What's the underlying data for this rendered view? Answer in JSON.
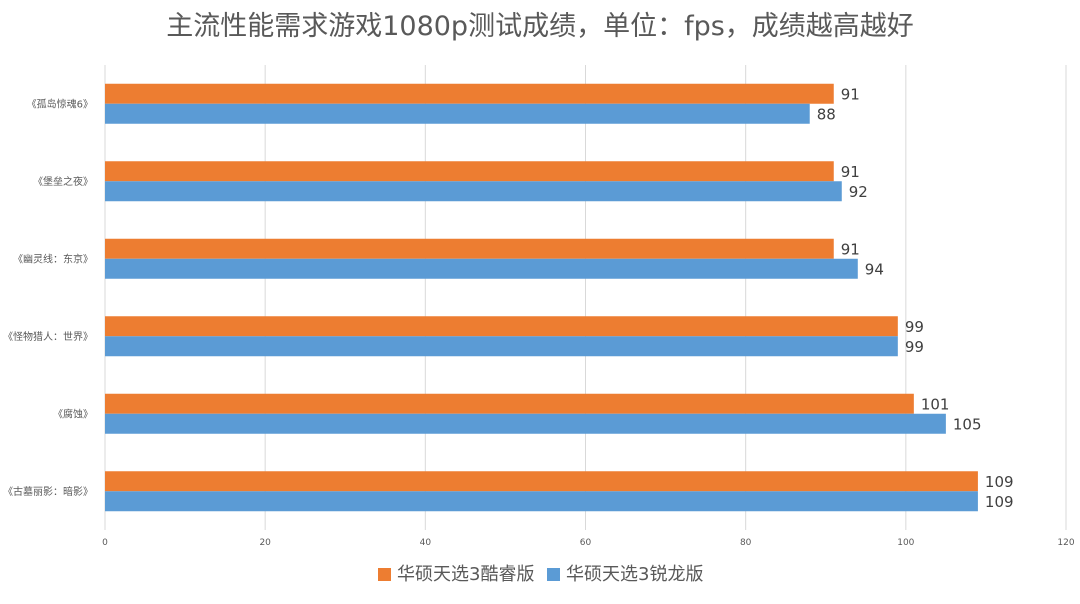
{
  "chart_data": {
    "type": "bar",
    "orientation": "horizontal",
    "title": "主流性能需求游戏1080p测试成绩，单位：fps，成绩越高越好",
    "categories": [
      "《孤岛惊魂6》",
      "《堡垒之夜》",
      "《幽灵线：东京》",
      "《怪物猎人：世界》",
      "《腐蚀》",
      "《古墓丽影：暗影》"
    ],
    "series": [
      {
        "name": "华硕天选3酷睿版",
        "color": "#ed7d31",
        "values": [
          91,
          91,
          91,
          99,
          101,
          109
        ]
      },
      {
        "name": "华硕天选3锐龙版",
        "color": "#5b9bd5",
        "values": [
          88,
          92,
          94,
          99,
          105,
          109
        ]
      }
    ],
    "xlim": [
      0,
      120
    ],
    "xticks": [
      0,
      20,
      40,
      60,
      80,
      100,
      120
    ],
    "grid": true,
    "legend": "bottom",
    "data_labels": true
  }
}
